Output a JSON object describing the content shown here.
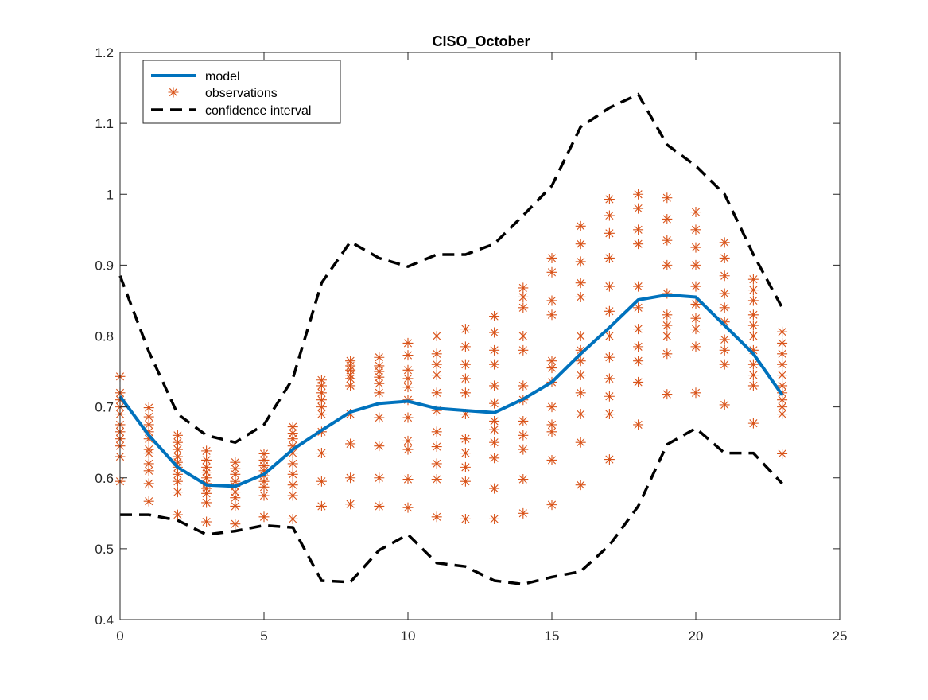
{
  "chart_data": {
    "type": "line",
    "title": "CISO_October",
    "xlabel": "",
    "ylabel": "",
    "xlim": [
      0,
      25
    ],
    "ylim": [
      0.4,
      1.2
    ],
    "xticks": [
      0,
      5,
      10,
      15,
      20,
      25
    ],
    "yticks": [
      0.4,
      0.5,
      0.6,
      0.7,
      0.8,
      0.9,
      1,
      1.1,
      1.2
    ],
    "xtick_labels": [
      "0",
      "5",
      "10",
      "15",
      "20",
      "25"
    ],
    "ytick_labels": [
      "0.4",
      "0.5",
      "0.6",
      "0.7",
      "0.8",
      "0.9",
      "1",
      "1.1",
      "1.2"
    ],
    "grid": false,
    "legend_position": "top-left",
    "x": [
      0,
      1,
      2,
      3,
      4,
      5,
      6,
      7,
      8,
      9,
      10,
      11,
      12,
      13,
      14,
      15,
      16,
      17,
      18,
      19,
      20,
      21,
      22,
      23
    ],
    "series": [
      {
        "name": "model",
        "style": "line",
        "color": "#0072BD",
        "values": [
          0.715,
          0.66,
          0.615,
          0.59,
          0.588,
          0.605,
          0.64,
          0.667,
          0.693,
          0.705,
          0.708,
          0.698,
          0.695,
          0.692,
          0.711,
          0.735,
          0.775,
          0.812,
          0.851,
          0.858,
          0.855,
          0.815,
          0.775,
          0.717
        ]
      },
      {
        "name": "observations",
        "style": "markers",
        "marker": "asterisk",
        "color": "#D95319",
        "points_by_x": [
          [
            0.595,
            0.63,
            0.645,
            0.655,
            0.665,
            0.675,
            0.69,
            0.7,
            0.71,
            0.72,
            0.743
          ],
          [
            0.567,
            0.592,
            0.61,
            0.62,
            0.635,
            0.64,
            0.655,
            0.665,
            0.675,
            0.686,
            0.699
          ],
          [
            0.548,
            0.58,
            0.595,
            0.605,
            0.615,
            0.622,
            0.63,
            0.64,
            0.65,
            0.66
          ],
          [
            0.538,
            0.565,
            0.578,
            0.585,
            0.592,
            0.6,
            0.608,
            0.615,
            0.625,
            0.638
          ],
          [
            0.535,
            0.56,
            0.572,
            0.58,
            0.588,
            0.595,
            0.605,
            0.613,
            0.622
          ],
          [
            0.545,
            0.575,
            0.587,
            0.595,
            0.603,
            0.61,
            0.617,
            0.625,
            0.634
          ],
          [
            0.542,
            0.575,
            0.59,
            0.605,
            0.62,
            0.635,
            0.645,
            0.655,
            0.663,
            0.672
          ],
          [
            0.56,
            0.595,
            0.635,
            0.665,
            0.69,
            0.7,
            0.71,
            0.72,
            0.73,
            0.738
          ],
          [
            0.563,
            0.6,
            0.648,
            0.69,
            0.73,
            0.74,
            0.745,
            0.752,
            0.758,
            0.765
          ],
          [
            0.56,
            0.6,
            0.645,
            0.685,
            0.72,
            0.733,
            0.742,
            0.75,
            0.758,
            0.77
          ],
          [
            0.558,
            0.598,
            0.64,
            0.652,
            0.685,
            0.71,
            0.728,
            0.74,
            0.752,
            0.773,
            0.79
          ],
          [
            0.545,
            0.598,
            0.62,
            0.644,
            0.665,
            0.695,
            0.72,
            0.745,
            0.76,
            0.775,
            0.8
          ],
          [
            0.542,
            0.595,
            0.615,
            0.635,
            0.655,
            0.69,
            0.72,
            0.74,
            0.76,
            0.785,
            0.81
          ],
          [
            0.542,
            0.585,
            0.628,
            0.65,
            0.668,
            0.68,
            0.705,
            0.73,
            0.76,
            0.78,
            0.805,
            0.828
          ],
          [
            0.55,
            0.598,
            0.64,
            0.66,
            0.68,
            0.71,
            0.73,
            0.78,
            0.8,
            0.84,
            0.855,
            0.868
          ],
          [
            0.562,
            0.625,
            0.665,
            0.675,
            0.7,
            0.735,
            0.755,
            0.765,
            0.83,
            0.85,
            0.89,
            0.91
          ],
          [
            0.59,
            0.65,
            0.69,
            0.72,
            0.745,
            0.765,
            0.78,
            0.8,
            0.855,
            0.875,
            0.905,
            0.93,
            0.955
          ],
          [
            0.626,
            0.69,
            0.715,
            0.74,
            0.77,
            0.8,
            0.835,
            0.87,
            0.91,
            0.945,
            0.97,
            0.993
          ],
          [
            0.675,
            0.735,
            0.765,
            0.785,
            0.81,
            0.84,
            0.87,
            0.93,
            0.95,
            0.98,
            1.0
          ],
          [
            0.718,
            0.775,
            0.8,
            0.815,
            0.83,
            0.86,
            0.9,
            0.935,
            0.965,
            0.995
          ],
          [
            0.72,
            0.785,
            0.81,
            0.825,
            0.845,
            0.87,
            0.9,
            0.925,
            0.95,
            0.975
          ],
          [
            0.703,
            0.76,
            0.78,
            0.795,
            0.82,
            0.84,
            0.86,
            0.885,
            0.91,
            0.932
          ],
          [
            0.677,
            0.73,
            0.745,
            0.76,
            0.78,
            0.8,
            0.815,
            0.83,
            0.85,
            0.865,
            0.88
          ],
          [
            0.634,
            0.69,
            0.7,
            0.71,
            0.72,
            0.73,
            0.745,
            0.76,
            0.775,
            0.79,
            0.806
          ]
        ]
      },
      {
        "name": "confidence interval",
        "style": "dashed",
        "color": "#000000",
        "upper": [
          0.885,
          0.778,
          0.69,
          0.66,
          0.65,
          0.675,
          0.74,
          0.875,
          0.933,
          0.91,
          0.898,
          0.915,
          0.915,
          0.93,
          0.97,
          1.012,
          1.095,
          1.122,
          1.141,
          1.07,
          1.04,
          1.0,
          0.915,
          0.84
        ],
        "lower": [
          0.548,
          0.548,
          0.54,
          0.52,
          0.525,
          0.533,
          0.53,
          0.455,
          0.453,
          0.498,
          0.52,
          0.48,
          0.475,
          0.455,
          0.45,
          0.46,
          0.468,
          0.505,
          0.56,
          0.647,
          0.67,
          0.635,
          0.635,
          0.592
        ]
      }
    ]
  }
}
